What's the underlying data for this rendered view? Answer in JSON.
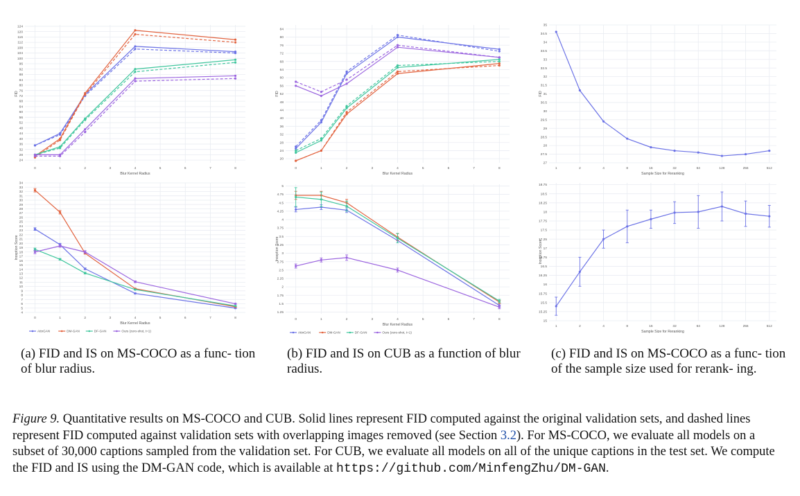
{
  "colors": {
    "attngan": "#6b72e6",
    "dmgan": "#e2633f",
    "dfgan": "#3fc69d",
    "ours": "#9a63df",
    "grid": "#e9ecf2",
    "axis": "#555555"
  },
  "legend_labels": [
    "AttnGAN",
    "DM-GAN",
    "DF-GAN",
    "Ours (zero-shot, t=1)"
  ],
  "chart_data": [
    {
      "id": "fid-coco",
      "type": "line",
      "x": [
        0,
        1,
        2,
        4,
        8
      ],
      "xticks": [
        0,
        1,
        2,
        3,
        4,
        5,
        6,
        7,
        8
      ],
      "xlim": [
        -0.4,
        8.4
      ],
      "ylim": [
        22,
        125
      ],
      "yticks": [
        24,
        28,
        32,
        36,
        40,
        44,
        48,
        52,
        56,
        60,
        64,
        68,
        72,
        76,
        80,
        84,
        88,
        92,
        96,
        100,
        104,
        108,
        112,
        116,
        120,
        124
      ],
      "ylabel": "FID",
      "xlabel": "Blur Kernel Radius",
      "series": [
        {
          "color_key": "attngan",
          "style": "solid",
          "values": [
            35,
            44,
            73,
            109,
            105
          ]
        },
        {
          "color_key": "attngan",
          "style": "dashed",
          "values": [
            35,
            43,
            72,
            107,
            104
          ]
        },
        {
          "color_key": "dmgan",
          "style": "solid",
          "values": [
            27,
            40,
            74,
            121,
            114
          ]
        },
        {
          "color_key": "dmgan",
          "style": "dashed",
          "values": [
            26,
            39,
            73,
            118,
            112
          ]
        },
        {
          "color_key": "dfgan",
          "style": "solid",
          "values": [
            28,
            34,
            55,
            92,
            99
          ]
        },
        {
          "color_key": "dfgan",
          "style": "dashed",
          "values": [
            28,
            33,
            54,
            90,
            97
          ]
        },
        {
          "color_key": "ours",
          "style": "solid",
          "values": [
            28,
            28,
            47,
            85,
            87
          ]
        },
        {
          "color_key": "ours",
          "style": "dashed",
          "values": [
            27,
            27,
            45,
            83,
            85
          ]
        }
      ]
    },
    {
      "id": "fid-cub",
      "type": "line",
      "x": [
        0,
        1,
        2,
        4,
        8
      ],
      "xticks": [
        0,
        1,
        2,
        3,
        4,
        5,
        6,
        7,
        8
      ],
      "xlim": [
        -0.4,
        8.4
      ],
      "ylim": [
        18,
        86
      ],
      "yticks": [
        20,
        24,
        28,
        32,
        36,
        40,
        44,
        48,
        52,
        56,
        60,
        64,
        68,
        72,
        76,
        80,
        84
      ],
      "ylabel": "FID",
      "xlabel": "Blur Kernel Radius",
      "series": [
        {
          "color_key": "attngan",
          "style": "solid",
          "values": [
            25,
            38,
            62,
            80,
            74
          ]
        },
        {
          "color_key": "attngan",
          "style": "dashed",
          "values": [
            26,
            39,
            63,
            81,
            73
          ]
        },
        {
          "color_key": "dmgan",
          "style": "solid",
          "values": [
            19,
            24,
            42,
            62,
            67
          ]
        },
        {
          "color_key": "dmgan",
          "style": "dashed",
          "values": [
            19,
            24,
            43,
            63,
            66
          ]
        },
        {
          "color_key": "dfgan",
          "style": "solid",
          "values": [
            23,
            29,
            45,
            65,
            69
          ]
        },
        {
          "color_key": "dfgan",
          "style": "dashed",
          "values": [
            24,
            30,
            46,
            66,
            68
          ]
        },
        {
          "color_key": "ours",
          "style": "solid",
          "values": [
            56,
            51,
            57,
            75,
            70
          ]
        },
        {
          "color_key": "ours",
          "style": "dashed",
          "values": [
            58,
            53,
            59,
            76,
            70
          ]
        }
      ]
    },
    {
      "id": "fid-rerank",
      "type": "line",
      "x": [
        0,
        1,
        2,
        3,
        4,
        5,
        6,
        7,
        8,
        9
      ],
      "xticklabels": [
        "1",
        "2",
        "4",
        "8",
        "16",
        "32",
        "64",
        "128",
        "256",
        "512"
      ],
      "xlim": [
        -0.3,
        9.3
      ],
      "ylim": [
        27,
        35
      ],
      "yticks": [
        "27",
        "27.5",
        "28",
        "28.5",
        "29",
        "29.5",
        "30",
        "30.5",
        "31",
        "31.5",
        "32",
        "32.5",
        "33",
        "33.5",
        "34",
        "34.5",
        "35"
      ],
      "ylabel": "FID",
      "xlabel": "Sample Size for Reranking",
      "series": [
        {
          "color_key": "attngan",
          "style": "solid",
          "values": [
            34.6,
            31.2,
            29.4,
            28.4,
            27.9,
            27.7,
            27.6,
            27.4,
            27.5,
            27.7
          ]
        }
      ]
    },
    {
      "id": "is-coco",
      "type": "line",
      "x": [
        0,
        1,
        2,
        4,
        8
      ],
      "xticks": [
        0,
        1,
        2,
        3,
        4,
        5,
        6,
        7,
        8
      ],
      "xlim": [
        -0.4,
        8.4
      ],
      "ylim": [
        4,
        34
      ],
      "yticks": [
        "4",
        "5",
        "6",
        "7",
        "8",
        "9",
        "10",
        "11",
        "12",
        "13",
        "14",
        "15",
        "16",
        "17",
        "18",
        "19",
        "20",
        "21",
        "22",
        "23",
        "24",
        "25",
        "26",
        "27",
        "28",
        "29",
        "30",
        "31",
        "32",
        "33",
        "34"
      ],
      "ylabel": "Inception Score",
      "xlabel": "Blur Kernel Radius",
      "legend": true,
      "series": [
        {
          "color_key": "attngan",
          "style": "solid",
          "values": [
            23.3,
            19.7,
            14.1,
            8.4,
            5.0
          ],
          "err": [
            0.3,
            0.3,
            0.2,
            0.1,
            0.1
          ]
        },
        {
          "color_key": "dmgan",
          "style": "solid",
          "values": [
            32.3,
            27.2,
            17.7,
            9.5,
            5.3
          ],
          "err": [
            0.4,
            0.4,
            0.2,
            0.1,
            0.1
          ]
        },
        {
          "color_key": "dfgan",
          "style": "solid",
          "values": [
            18.6,
            16.3,
            13.1,
            9.3,
            5.5
          ],
          "err": [
            0.3,
            0.2,
            0.2,
            0.1,
            0.1
          ]
        },
        {
          "color_key": "ours",
          "style": "solid",
          "values": [
            18.0,
            19.4,
            18.0,
            11.1,
            6.0
          ],
          "err": [
            0.4,
            0.3,
            0.3,
            0.2,
            0.1
          ]
        }
      ]
    },
    {
      "id": "is-cub",
      "type": "line",
      "x": [
        0,
        1,
        2,
        4,
        8
      ],
      "xticks": [
        0,
        1,
        2,
        3,
        4,
        5,
        6,
        7,
        8
      ],
      "xlim": [
        -0.4,
        8.4
      ],
      "ylim": [
        1.2,
        5.05
      ],
      "yticks": [
        "1.25",
        "1.5",
        "1.75",
        "2",
        "2.25",
        "2.5",
        "2.75",
        "3",
        "3.25",
        "3.5",
        "3.75",
        "4",
        "4.25",
        "4.5",
        "4.75",
        "5"
      ],
      "ylabel": "Inception Score",
      "xlabel": "Blur Kernel Radius",
      "legend": true,
      "series": [
        {
          "color_key": "attngan",
          "style": "solid",
          "values": [
            4.3,
            4.37,
            4.28,
            3.38,
            1.45
          ],
          "err": [
            0.07,
            0.07,
            0.07,
            0.07,
            0.05
          ]
        },
        {
          "color_key": "dmgan",
          "style": "solid",
          "values": [
            4.72,
            4.72,
            4.5,
            3.48,
            1.55
          ],
          "err": [
            0.12,
            0.12,
            0.1,
            0.1,
            0.05
          ]
        },
        {
          "color_key": "dfgan",
          "style": "solid",
          "values": [
            4.67,
            4.6,
            4.4,
            3.45,
            1.58
          ],
          "err": [
            0.28,
            0.22,
            0.15,
            0.14,
            0.05
          ]
        },
        {
          "color_key": "ours",
          "style": "solid",
          "values": [
            2.62,
            2.8,
            2.87,
            2.5,
            1.4
          ],
          "err": [
            0.06,
            0.06,
            0.08,
            0.06,
            0.05
          ]
        }
      ]
    },
    {
      "id": "is-rerank",
      "type": "line",
      "x": [
        0,
        1,
        2,
        3,
        4,
        5,
        6,
        7,
        8,
        9
      ],
      "xticklabels": [
        "1",
        "2",
        "4",
        "8",
        "16",
        "32",
        "64",
        "128",
        "256",
        "512"
      ],
      "xlim": [
        -0.3,
        9.3
      ],
      "ylim": [
        15,
        18.8
      ],
      "yticks": [
        "15",
        "15.25",
        "15.5",
        "15.75",
        "16",
        "16.25",
        "16.5",
        "16.75",
        "17",
        "17.25",
        "17.5",
        "17.75",
        "18",
        "18.25",
        "18.5",
        "18.75"
      ],
      "ylabel": "Inception Score",
      "xlabel": "Sample Size for Reranking",
      "series": [
        {
          "color_key": "attngan",
          "style": "solid",
          "values": [
            15.4,
            16.35,
            17.25,
            17.6,
            17.8,
            17.98,
            18.0,
            18.15,
            17.95,
            17.88
          ],
          "err": [
            0.25,
            0.4,
            0.25,
            0.45,
            0.25,
            0.3,
            0.45,
            0.4,
            0.35,
            0.3
          ]
        }
      ]
    }
  ],
  "captions": {
    "a": "(a) FID and IS on MS-COCO as a func- tion of blur radius.",
    "b": "(b) FID and IS on CUB as a function of blur radius.",
    "c": "(c) FID and IS on MS-COCO as a func- tion of the sample size used for rerank- ing.",
    "figure_label": "Figure 9.",
    "figure_text_1": " Quantitative results on MS-COCO and CUB. Solid lines represent FID computed against the original validation sets, and dashed lines represent FID computed against validation sets with overlapping images removed (see Section ",
    "figure_ref": "3.2",
    "figure_text_2": "). For MS-COCO, we evaluate all models on a subset of 30,000 captions sampled from the validation set. For CUB, we evaluate all models on all of the unique captions in the test set. We compute the FID and IS using the DM-GAN code, which is available at ",
    "figure_url": "https://github.com/MinfengZhu/DM-GAN",
    "figure_text_3": "."
  }
}
